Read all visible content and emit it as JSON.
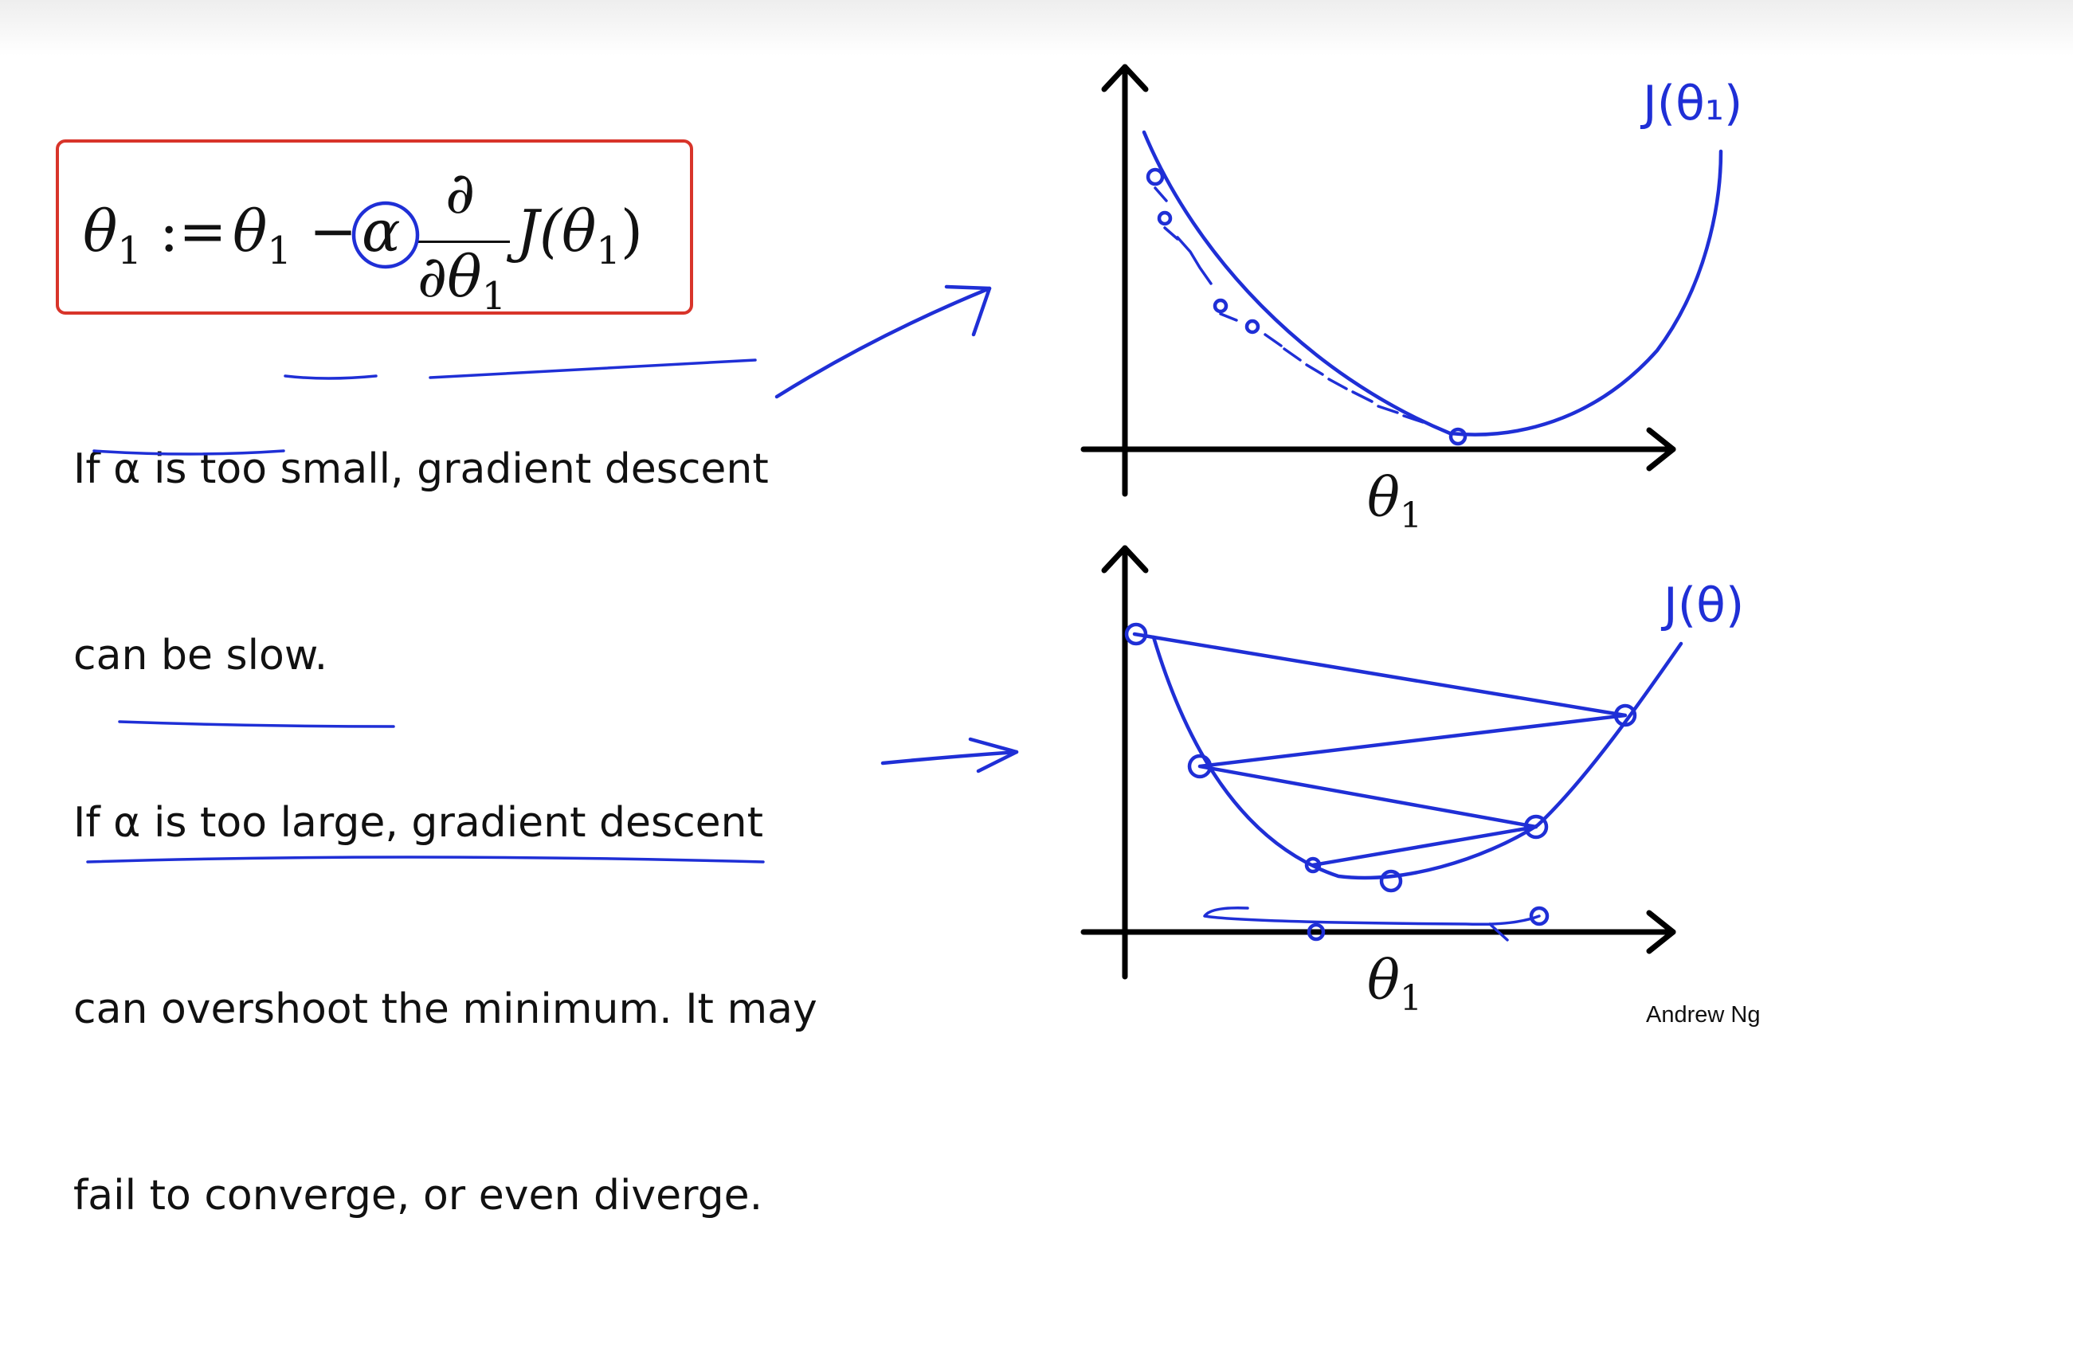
{
  "slide": {
    "formula": {
      "lhs": "θ",
      "lhs_sub": "1",
      "assign": ":=",
      "rhs_theta": "θ",
      "rhs_sub": "1",
      "minus": "−",
      "alpha": "α",
      "partial_num": "∂",
      "partial_den": "∂θ",
      "partial_den_sub": "1",
      "J": "J(θ",
      "J_sub": "1",
      "J_close": ")"
    },
    "caption_small": {
      "line1": "If α is too small, gradient descent",
      "line2": "can be slow."
    },
    "caption_large": {
      "line1": "If α is too large, gradient descent",
      "line2": "can overshoot the minimum. It may",
      "line3": "fail to converge, or even diverge."
    },
    "graph_top": {
      "x_axis_label": "θ",
      "x_axis_label_sub": "1",
      "curve_label": "J(θ₁)"
    },
    "graph_bottom": {
      "x_axis_label": "θ",
      "x_axis_label_sub": "1",
      "curve_label": "J(θ)"
    },
    "credit": "Andrew Ng",
    "colors": {
      "ink": "#1f2fd6",
      "box": "#d8342a",
      "axes": "#000000"
    }
  }
}
